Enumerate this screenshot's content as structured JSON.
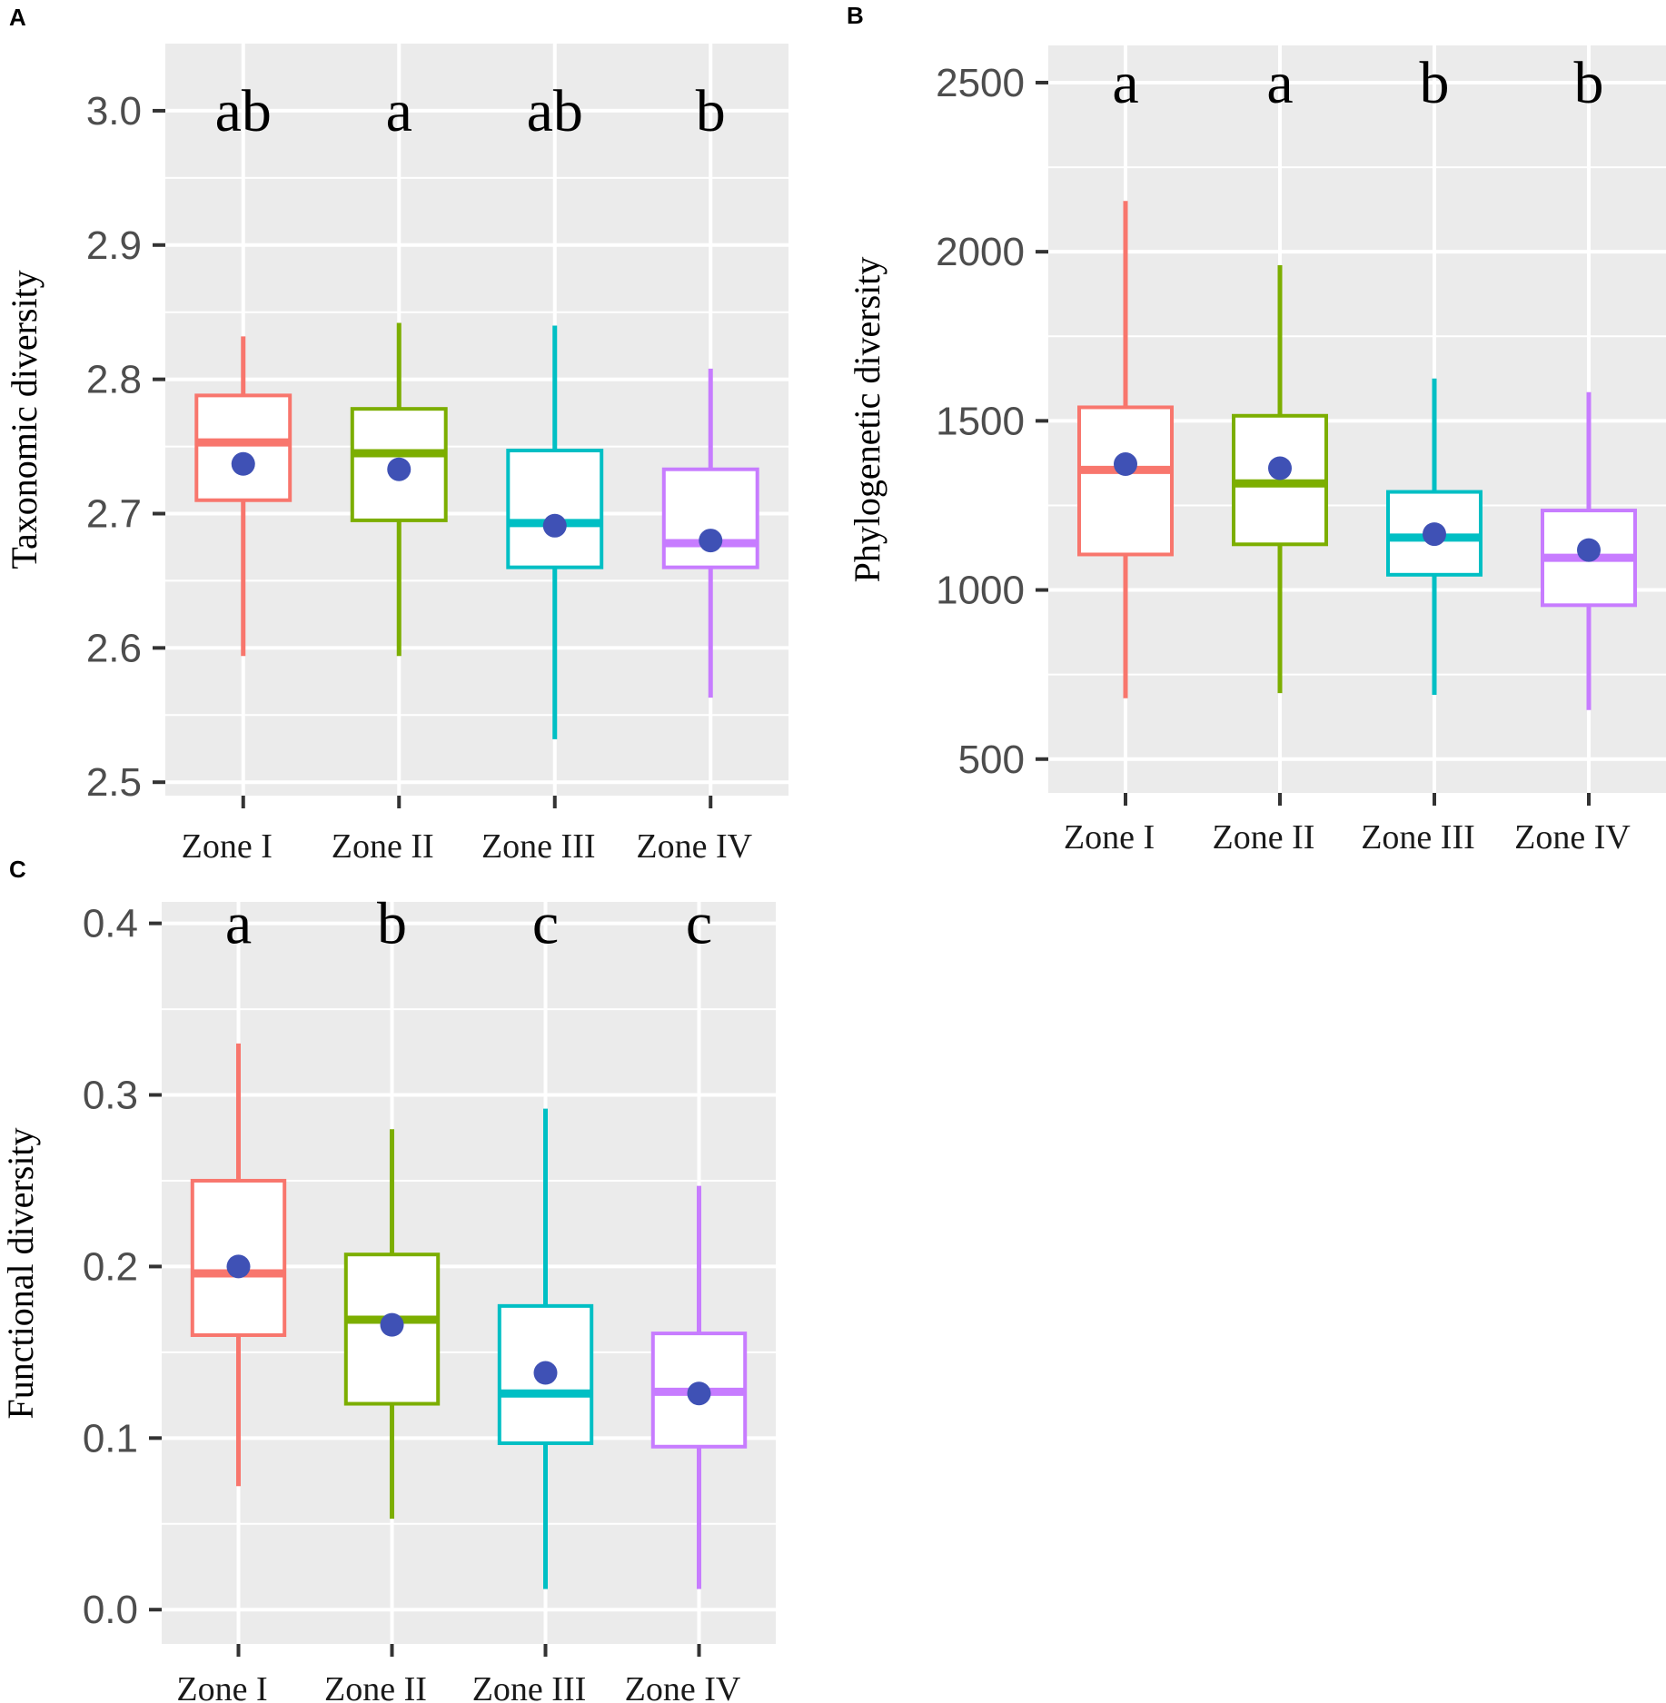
{
  "chart_data": [
    {
      "panel": "A",
      "type": "boxplot",
      "ylabel": "Taxonomic diversity",
      "xlabel": "",
      "ylim": [
        2.49,
        3.05
      ],
      "yticks": [
        2.5,
        2.6,
        2.7,
        2.8,
        2.9,
        3.0
      ],
      "ytick_labels": [
        "2.5",
        "2.6",
        "2.7",
        "2.8",
        "2.9",
        "3.0"
      ],
      "categories": [
        "Zone I",
        "Zone II",
        "Zone III",
        "Zone IV"
      ],
      "colors": [
        "#F8766D",
        "#7CAE00",
        "#00BFC4",
        "#C77CFF"
      ],
      "boxes": [
        {
          "lower_whisker": 2.594,
          "q1": 2.71,
          "median": 2.753,
          "q3": 2.788,
          "upper_whisker": 2.832
        },
        {
          "lower_whisker": 2.594,
          "q1": 2.695,
          "median": 2.745,
          "q3": 2.778,
          "upper_whisker": 2.842
        },
        {
          "lower_whisker": 2.532,
          "q1": 2.66,
          "median": 2.693,
          "q3": 2.747,
          "upper_whisker": 2.84
        },
        {
          "lower_whisker": 2.563,
          "q1": 2.66,
          "median": 2.678,
          "q3": 2.733,
          "upper_whisker": 2.808
        }
      ],
      "means": [
        2.737,
        2.733,
        2.691,
        2.68
      ],
      "significance": [
        "ab",
        "a",
        "ab",
        "b"
      ],
      "significance_y": 3.0
    },
    {
      "panel": "B",
      "type": "boxplot",
      "ylabel": "Phylogenetic diversity",
      "xlabel": "",
      "ylim": [
        400,
        2610
      ],
      "yticks": [
        500,
        1000,
        1500,
        2000,
        2500
      ],
      "ytick_labels": [
        "500",
        "1000",
        "1500",
        "2000",
        "2500"
      ],
      "categories": [
        "Zone I",
        "Zone II",
        "Zone III",
        "Zone IV"
      ],
      "colors": [
        "#F8766D",
        "#7CAE00",
        "#00BFC4",
        "#C77CFF"
      ],
      "boxes": [
        {
          "lower_whisker": 680,
          "q1": 1105,
          "median": 1355,
          "q3": 1540,
          "upper_whisker": 2150
        },
        {
          "lower_whisker": 695,
          "q1": 1135,
          "median": 1315,
          "q3": 1515,
          "upper_whisker": 1960
        },
        {
          "lower_whisker": 690,
          "q1": 1045,
          "median": 1155,
          "q3": 1290,
          "upper_whisker": 1625
        },
        {
          "lower_whisker": 645,
          "q1": 955,
          "median": 1095,
          "q3": 1235,
          "upper_whisker": 1585
        }
      ],
      "means": [
        1372,
        1360,
        1165,
        1118
      ],
      "significance": [
        "a",
        "a",
        "b",
        "b"
      ],
      "significance_y": 2500
    },
    {
      "panel": "C",
      "type": "boxplot",
      "ylabel": "Functional diversity",
      "xlabel": "",
      "ylim": [
        -0.02,
        0.4125
      ],
      "yticks": [
        0.0,
        0.1,
        0.2,
        0.3,
        0.4
      ],
      "ytick_labels": [
        "0.0",
        "0.1",
        "0.2",
        "0.3",
        "0.4"
      ],
      "categories": [
        "Zone I",
        "Zone II",
        "Zone III",
        "Zone IV"
      ],
      "colors": [
        "#F8766D",
        "#7CAE00",
        "#00BFC4",
        "#C77CFF"
      ],
      "boxes": [
        {
          "lower_whisker": 0.072,
          "q1": 0.16,
          "median": 0.196,
          "q3": 0.25,
          "upper_whisker": 0.33
        },
        {
          "lower_whisker": 0.053,
          "q1": 0.12,
          "median": 0.169,
          "q3": 0.207,
          "upper_whisker": 0.28
        },
        {
          "lower_whisker": 0.012,
          "q1": 0.097,
          "median": 0.126,
          "q3": 0.177,
          "upper_whisker": 0.292
        },
        {
          "lower_whisker": 0.012,
          "q1": 0.095,
          "median": 0.127,
          "q3": 0.161,
          "upper_whisker": 0.247
        }
      ],
      "means": [
        0.2,
        0.166,
        0.138,
        0.126
      ],
      "significance": [
        "a",
        "b",
        "c",
        "c"
      ],
      "significance_y": 0.4
    }
  ],
  "style": {
    "panel_background": "#EBEBEB",
    "gridline_color": "#FFFFFF",
    "mean_point_color": "#3F51B5",
    "tick_color": "#333333"
  }
}
